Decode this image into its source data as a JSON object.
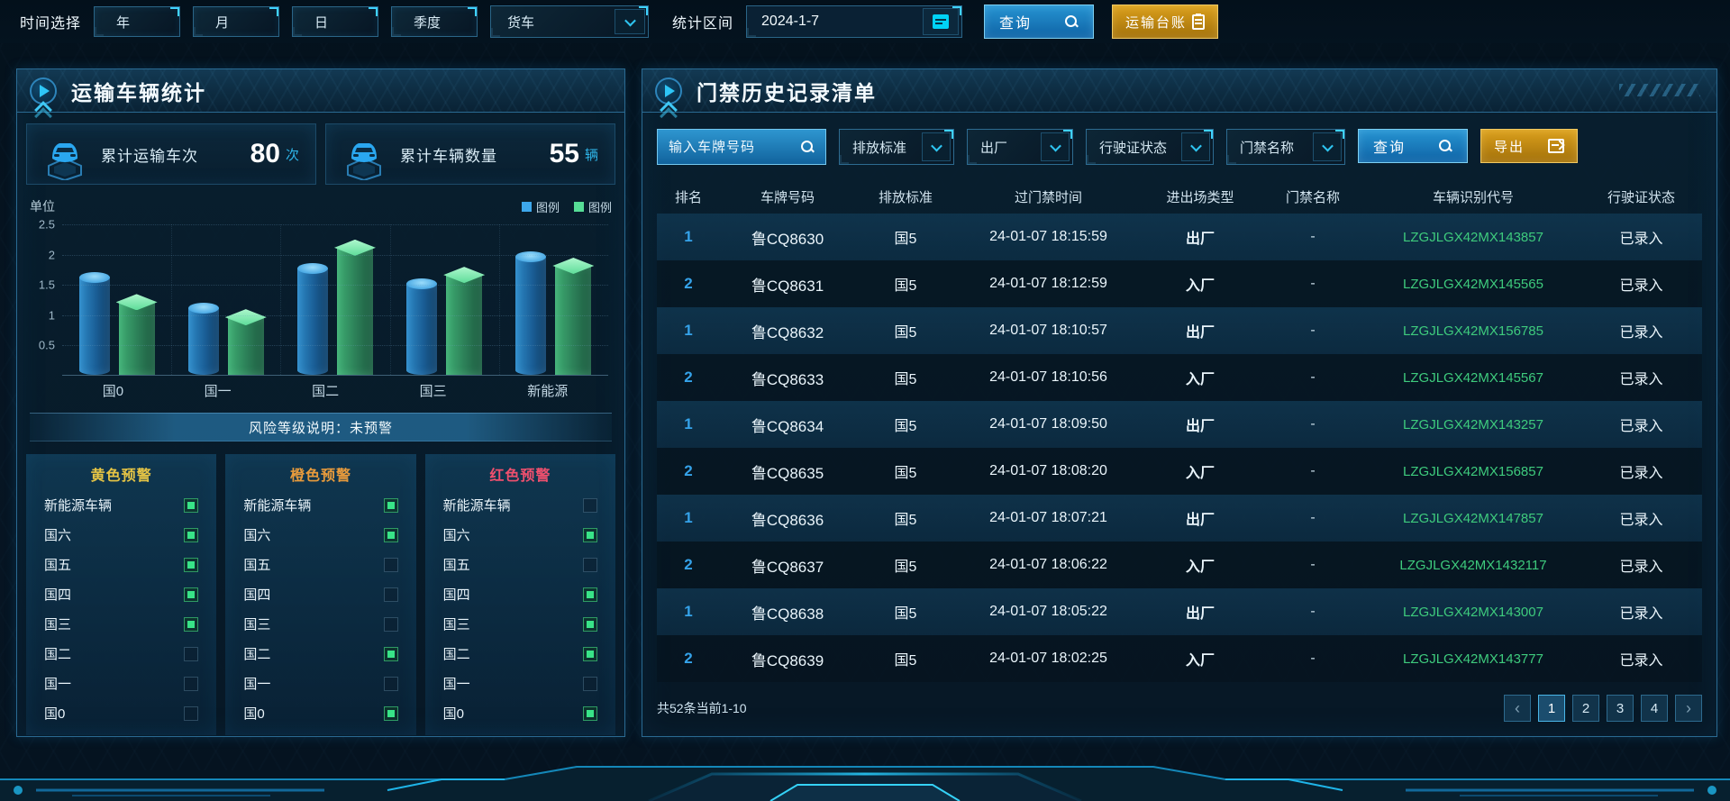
{
  "colors": {
    "accent_cyan": "#2ec4f0",
    "button_blue": "#1479c0",
    "button_gold": "#c8860a",
    "warning_yellow": "#e6c545",
    "warning_orange": "#e89b3c",
    "warning_red": "#f0506e",
    "vin_green": "#3ecb7d",
    "bar_blue": "#3da8ec",
    "bar_green": "#56dd96"
  },
  "topbar": {
    "time_label": "时间选择",
    "period_buttons": [
      "年",
      "月",
      "日",
      "季度"
    ],
    "vehicle_select_value": "货车",
    "range_label": "统计区间",
    "date_value": "2024-1-7",
    "query_label": "查询",
    "ledger_label": "运输台账"
  },
  "left_panel": {
    "title": "运输车辆统计",
    "stats": [
      {
        "label": "累计运输车次",
        "value": "80",
        "unit": "次"
      },
      {
        "label": "累计车辆数量",
        "value": "55",
        "unit": "辆"
      }
    ],
    "risk_note": "风险等级说明：未预警",
    "warnings": [
      {
        "title": "黄色预警",
        "color": "#e6c545",
        "items": [
          {
            "label": "新能源车辆",
            "checked": true
          },
          {
            "label": "国六",
            "checked": true
          },
          {
            "label": "国五",
            "checked": true
          },
          {
            "label": "国四",
            "checked": true
          },
          {
            "label": "国三",
            "checked": true
          },
          {
            "label": "国二",
            "checked": false
          },
          {
            "label": "国一",
            "checked": false
          },
          {
            "label": "国0",
            "checked": false
          }
        ]
      },
      {
        "title": "橙色预警",
        "color": "#e89b3c",
        "items": [
          {
            "label": "新能源车辆",
            "checked": true
          },
          {
            "label": "国六",
            "checked": true
          },
          {
            "label": "国五",
            "checked": false
          },
          {
            "label": "国四",
            "checked": false
          },
          {
            "label": "国三",
            "checked": false
          },
          {
            "label": "国二",
            "checked": true
          },
          {
            "label": "国一",
            "checked": false
          },
          {
            "label": "国0",
            "checked": true
          }
        ]
      },
      {
        "title": "红色预警",
        "color": "#f0506e",
        "items": [
          {
            "label": "新能源车辆",
            "checked": false
          },
          {
            "label": "国六",
            "checked": true
          },
          {
            "label": "国五",
            "checked": false
          },
          {
            "label": "国四",
            "checked": true
          },
          {
            "label": "国三",
            "checked": true
          },
          {
            "label": "国二",
            "checked": true
          },
          {
            "label": "国一",
            "checked": false
          },
          {
            "label": "国0",
            "checked": true
          }
        ]
      }
    ]
  },
  "chart_data": {
    "type": "bar",
    "title": "",
    "unit_label": "单位",
    "categories": [
      "国0",
      "国一",
      "国二",
      "国三",
      "新能源"
    ],
    "series": [
      {
        "name": "图例",
        "color": "#3da8ec",
        "values": [
          1.6,
          1.1,
          1.75,
          1.5,
          1.95
        ]
      },
      {
        "name": "图例",
        "color": "#56dd96",
        "values": [
          1.2,
          0.95,
          2.1,
          1.65,
          1.8
        ]
      }
    ],
    "ylim": [
      0,
      2.5
    ],
    "yticks": [
      0.5,
      1,
      1.5,
      2,
      2.5
    ],
    "grid": true,
    "legend_position": "top-right"
  },
  "right_panel": {
    "title": "门禁历史记录清单",
    "filters": {
      "plate_placeholder": "输入车牌号码",
      "dropdowns": [
        "排放标准",
        "出厂",
        "行驶证状态",
        "门禁名称"
      ],
      "query_label": "查询",
      "export_label": "导出"
    },
    "table": {
      "headers": [
        "排名",
        "车牌号码",
        "排放标准",
        "过门禁时间",
        "进出场类型",
        "门禁名称",
        "车辆识别代号",
        "行驶证状态"
      ],
      "rows": [
        [
          "1",
          "鲁CQ8630",
          "国5",
          "24-01-07 18:15:59",
          "出厂",
          "-",
          "LZGJLGX42MX143857",
          "已录入"
        ],
        [
          "2",
          "鲁CQ8631",
          "国5",
          "24-01-07 18:12:59",
          "入厂",
          "-",
          "LZGJLGX42MX145565",
          "已录入"
        ],
        [
          "1",
          "鲁CQ8632",
          "国5",
          "24-01-07 18:10:57",
          "出厂",
          "-",
          "LZGJLGX42MX156785",
          "已录入"
        ],
        [
          "2",
          "鲁CQ8633",
          "国5",
          "24-01-07 18:10:56",
          "入厂",
          "-",
          "LZGJLGX42MX145567",
          "已录入"
        ],
        [
          "1",
          "鲁CQ8634",
          "国5",
          "24-01-07 18:09:50",
          "出厂",
          "-",
          "LZGJLGX42MX143257",
          "已录入"
        ],
        [
          "2",
          "鲁CQ8635",
          "国5",
          "24-01-07 18:08:20",
          "入厂",
          "-",
          "LZGJLGX42MX156857",
          "已录入"
        ],
        [
          "1",
          "鲁CQ8636",
          "国5",
          "24-01-07 18:07:21",
          "出厂",
          "-",
          "LZGJLGX42MX147857",
          "已录入"
        ],
        [
          "2",
          "鲁CQ8637",
          "国5",
          "24-01-07 18:06:22",
          "入厂",
          "-",
          "LZGJLGX42MX1432117",
          "已录入"
        ],
        [
          "1",
          "鲁CQ8638",
          "国5",
          "24-01-07 18:05:22",
          "出厂",
          "-",
          "LZGJLGX42MX143007",
          "已录入"
        ],
        [
          "2",
          "鲁CQ8639",
          "国5",
          "24-01-07 18:02:25",
          "入厂",
          "-",
          "LZGJLGX42MX143777",
          "已录入"
        ]
      ]
    },
    "pagination": {
      "total_text": "共52条当前1-10",
      "prev": "‹",
      "next": "›",
      "pages": [
        "1",
        "2",
        "3",
        "4"
      ],
      "current_page": "1"
    }
  }
}
